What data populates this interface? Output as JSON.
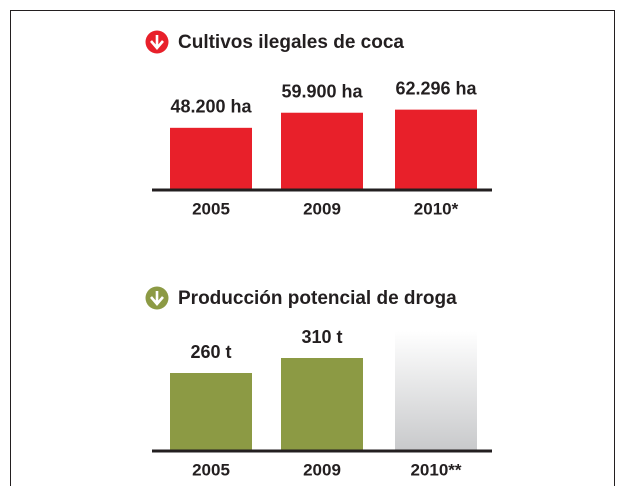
{
  "chart_data": [
    {
      "type": "bar",
      "title": "Cultivos ilegales de coca",
      "categories": [
        "2005",
        "2009",
        "2010*"
      ],
      "values": [
        48200,
        59900,
        62296
      ],
      "value_labels": [
        "48.200 ha",
        "59.900 ha",
        "62.296 ha"
      ],
      "color": "#e8202a"
    },
    {
      "type": "bar",
      "title": "Producción potencial de droga",
      "categories": [
        "2005",
        "2009",
        "2010**"
      ],
      "values": [
        260,
        310,
        null
      ],
      "value_labels": [
        "260 t",
        "310 t",
        null
      ],
      "color": "#8c9a44"
    }
  ]
}
